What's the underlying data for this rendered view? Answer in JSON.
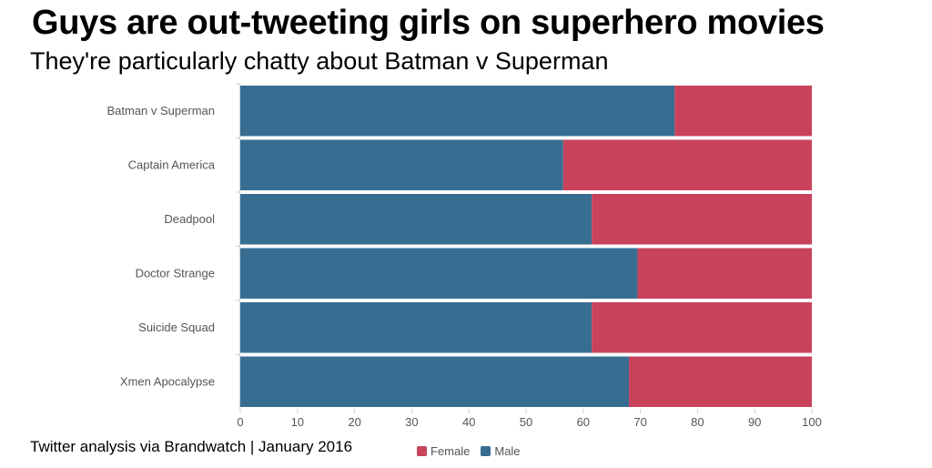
{
  "title": "Guys are out-tweeting girls on superhero movies",
  "subtitle": "They're particularly chatty about Batman v Superman",
  "source": "Twitter analysis via Brandwatch | January 2016",
  "colors": {
    "male": "#386d92",
    "female": "#c9425c"
  },
  "chart_data": {
    "type": "bar",
    "orientation": "horizontal",
    "stacked": true,
    "categories": [
      "Batman v Superman",
      "Captain America",
      "Deadpool",
      "Doctor Strange",
      "Suicide Squad",
      "Xmen Apocalypse"
    ],
    "series": [
      {
        "name": "Male",
        "values": [
          76,
          56.5,
          61.5,
          69.5,
          61.5,
          68
        ]
      },
      {
        "name": "Female",
        "values": [
          24,
          43.5,
          38.5,
          30.5,
          38.5,
          32
        ]
      }
    ],
    "xlim": [
      0,
      100
    ],
    "xticks": [
      "0",
      "10",
      "20",
      "30",
      "40",
      "50",
      "60",
      "70",
      "80",
      "90",
      "100"
    ],
    "legend": {
      "position": "bottom",
      "order": [
        "Female",
        "Male"
      ]
    },
    "grid": false
  }
}
